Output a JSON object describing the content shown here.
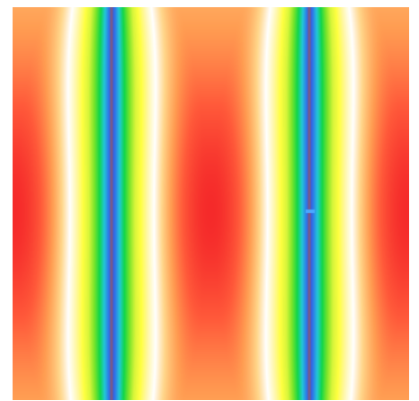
{
  "plot": {
    "type": "heatmap",
    "colormap": [
      "#3a4bd8",
      "#2f78e8",
      "#22c7d8",
      "#11d64a",
      "#7be52a",
      "#d8f53a",
      "#ffff40",
      "#fff7a8",
      "#ffffff",
      "#ffd68a",
      "#ff9d52",
      "#ff5a3a",
      "#f52a2a"
    ],
    "node_line_color": "#7a5a86",
    "background": "#ffffff"
  }
}
